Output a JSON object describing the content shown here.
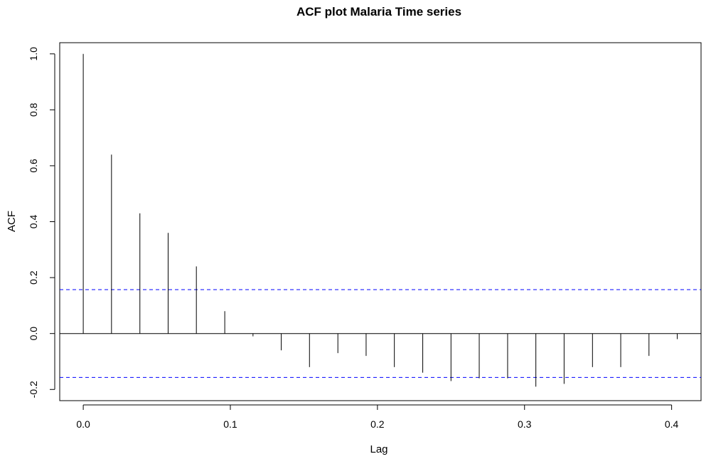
{
  "chart_data": {
    "type": "bar",
    "subtype": "acf-correlogram",
    "title": "ACF plot Malaria Time series",
    "xlabel": "Lag",
    "ylabel": "ACF",
    "x": [
      0.0,
      0.0192,
      0.0385,
      0.0577,
      0.0769,
      0.0962,
      0.1154,
      0.1346,
      0.1538,
      0.1731,
      0.1923,
      0.2115,
      0.2308,
      0.25,
      0.2692,
      0.2885,
      0.3077,
      0.3269,
      0.3462,
      0.3654,
      0.3846,
      0.4038
    ],
    "values": [
      1.0,
      0.64,
      0.43,
      0.36,
      0.24,
      0.08,
      -0.01,
      -0.06,
      -0.12,
      -0.07,
      -0.08,
      -0.12,
      -0.14,
      -0.17,
      -0.16,
      -0.16,
      -0.19,
      -0.18,
      -0.12,
      -0.12,
      -0.08,
      -0.02
    ],
    "confidence_band": 0.157,
    "xlim": [
      -0.016,
      0.42
    ],
    "ylim": [
      -0.24,
      1.04
    ],
    "xticks": [
      "0.0",
      "0.1",
      "0.2",
      "0.3",
      "0.4"
    ],
    "xtick_values": [
      0.0,
      0.1,
      0.2,
      0.3,
      0.4
    ],
    "yticks": [
      "-0.2",
      "0.0",
      "0.2",
      "0.4",
      "0.6",
      "0.8",
      "1.0"
    ],
    "ytick_values": [
      -0.2,
      0.0,
      0.2,
      0.4,
      0.6,
      0.8,
      1.0
    ],
    "grid": false,
    "bar_color": "#000000",
    "band_color": "#0000ff"
  }
}
